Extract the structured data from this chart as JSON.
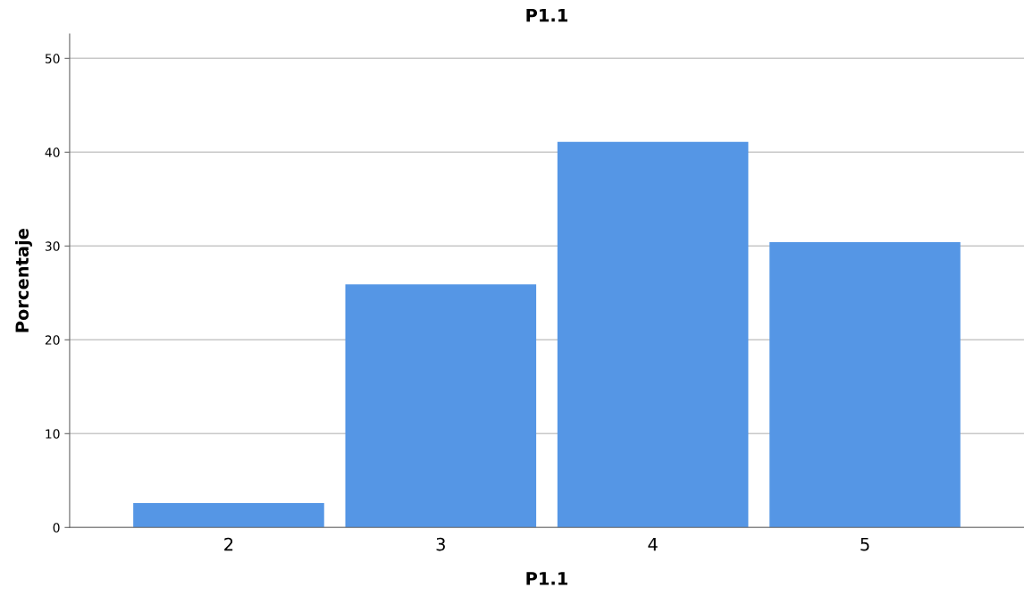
{
  "chart_data": {
    "type": "bar",
    "title": "P1.1",
    "xlabel": "P1.1",
    "ylabel": "Porcentaje",
    "categories": [
      "2",
      "3",
      "4",
      "5"
    ],
    "values": [
      2.6,
      25.9,
      41.1,
      30.4
    ],
    "color": "#5596e5",
    "ylim": [
      0,
      52.6
    ],
    "yticks": [
      0,
      10,
      20,
      30,
      40,
      50
    ],
    "grid": "y"
  }
}
